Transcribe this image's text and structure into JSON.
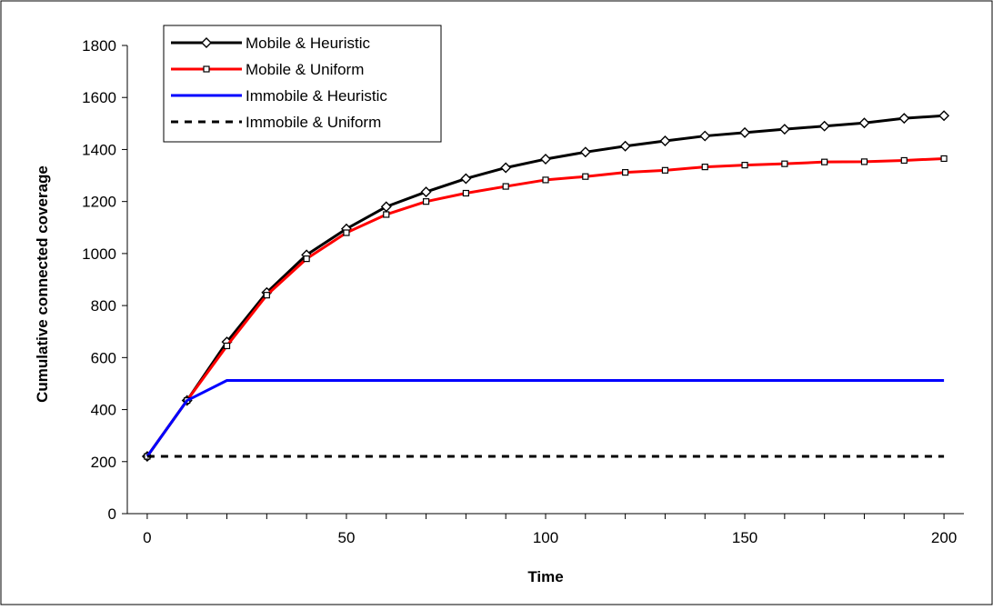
{
  "chart_data": {
    "type": "line",
    "title": "",
    "xlabel": "Time",
    "ylabel": "Cumulative connected coverage",
    "xlim": [
      -5,
      205
    ],
    "ylim": [
      0,
      1800
    ],
    "xticks": [
      0,
      50,
      100,
      150,
      200
    ],
    "xtick_labels": [
      "0",
      "50",
      "100",
      "150",
      "200"
    ],
    "xminor_step": 10,
    "yticks": [
      0,
      200,
      400,
      600,
      800,
      1000,
      1200,
      1400,
      1600,
      1800
    ],
    "ytick_labels": [
      "0",
      "200",
      "400",
      "600",
      "800",
      "1000",
      "1200",
      "1400",
      "1600",
      "1800"
    ],
    "grid": false,
    "legend_position": "top-left",
    "x": [
      0,
      10,
      20,
      30,
      40,
      50,
      60,
      70,
      80,
      90,
      100,
      110,
      120,
      130,
      140,
      150,
      160,
      170,
      180,
      190,
      200
    ],
    "series": [
      {
        "name": "Mobile & Heuristic",
        "color": "#000000",
        "marker": "diamond",
        "dash": "solid",
        "values": [
          220,
          435,
          660,
          850,
          995,
          1095,
          1180,
          1237,
          1288,
          1330,
          1363,
          1390,
          1413,
          1433,
          1452,
          1465,
          1478,
          1490,
          1502,
          1520,
          1530
        ]
      },
      {
        "name": "Mobile & Uniform",
        "color": "#ff0000",
        "marker": "square",
        "dash": "solid",
        "values": [
          220,
          435,
          645,
          840,
          980,
          1080,
          1150,
          1200,
          1232,
          1258,
          1283,
          1296,
          1312,
          1320,
          1333,
          1340,
          1345,
          1352,
          1353,
          1358,
          1365
        ]
      },
      {
        "name": "Immobile & Heuristic",
        "color": "#0000ff",
        "marker": "none",
        "dash": "solid",
        "values": [
          220,
          435,
          512,
          512,
          512,
          512,
          512,
          512,
          512,
          512,
          512,
          512,
          512,
          512,
          512,
          512,
          512,
          512,
          512,
          512,
          512
        ]
      },
      {
        "name": "Immobile & Uniform",
        "color": "#000000",
        "marker": "none",
        "dash": "dashed",
        "values": [
          220,
          220,
          220,
          220,
          220,
          220,
          220,
          220,
          220,
          220,
          220,
          220,
          220,
          220,
          220,
          220,
          220,
          220,
          220,
          220,
          220
        ]
      }
    ]
  }
}
